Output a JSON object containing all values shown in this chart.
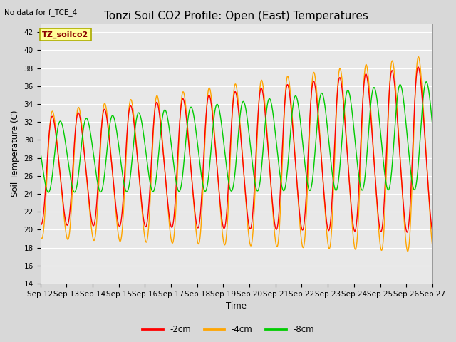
{
  "title": "Tonzi Soil CO2 Profile: Open (East) Temperatures",
  "subtitle": "No data for f_TCE_4",
  "xlabel": "Time",
  "ylabel": "Soil Temperature (C)",
  "ylim": [
    14,
    43
  ],
  "yticks": [
    14,
    16,
    18,
    20,
    22,
    24,
    26,
    28,
    30,
    32,
    34,
    36,
    38,
    40,
    42
  ],
  "xtick_labels": [
    "Sep 12",
    "Sep 13",
    "Sep 14",
    "Sep 15",
    "Sep 16",
    "Sep 17",
    "Sep 18",
    "Sep 19",
    "Sep 20",
    "Sep 21",
    "Sep 22",
    "Sep 23",
    "Sep 24",
    "Sep 25",
    "Sep 26",
    "Sep 27"
  ],
  "line_colors": {
    "-2cm": "#FF0000",
    "-4cm": "#FFA500",
    "-8cm": "#00CC00"
  },
  "line_width": 1.0,
  "legend_label": "TZ_soilco2",
  "legend_box_color": "#FFFF99",
  "legend_box_edge": "#AAAA00",
  "bg_color": "#E8E8E8",
  "grid_color": "#FFFFFF",
  "n_days": 15,
  "samples_per_day": 96,
  "fig_width": 6.4,
  "fig_height": 4.8,
  "fig_dpi": 100
}
